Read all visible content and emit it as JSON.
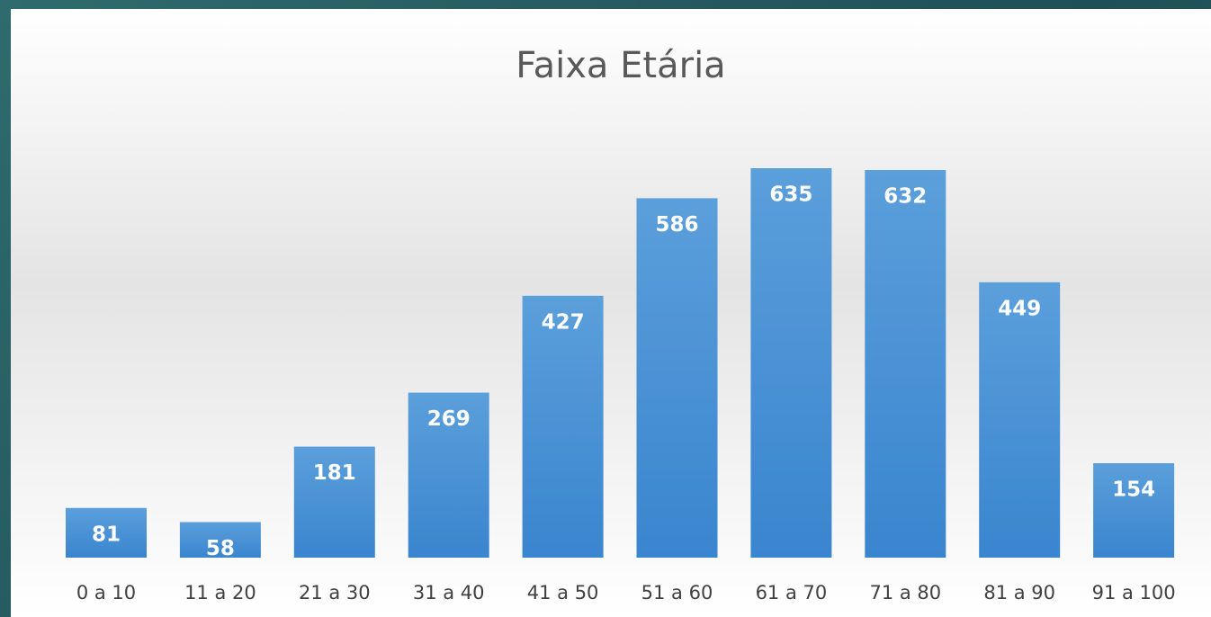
{
  "chart_data": {
    "type": "bar",
    "title": "Faixa Etária",
    "categories": [
      "0 a 10",
      "11 a 20",
      "21 a 30",
      "31 a 40",
      "41 a 50",
      "51 a 60",
      "61 a 70",
      "71 a 80",
      "81 a 90",
      "91 a 100"
    ],
    "values": [
      81,
      58,
      181,
      269,
      427,
      586,
      635,
      632,
      449,
      154
    ],
    "color": "#4a8fd6",
    "grid": false
  }
}
